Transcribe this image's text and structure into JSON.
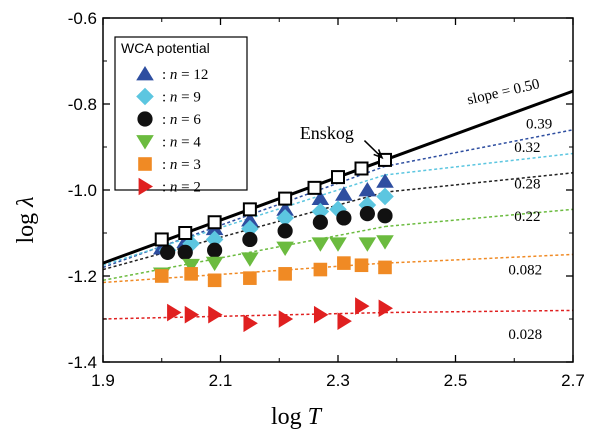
{
  "chart_data": {
    "type": "scatter",
    "xlabel_main": "log",
    "xlabel_var": "T",
    "ylabel_main": "log",
    "ylabel_var": "λ",
    "xlim": [
      1.9,
      2.7
    ],
    "ylim": [
      -1.4,
      -0.6
    ],
    "x_ticks": [
      "1.9",
      "2.1",
      "2.3",
      "2.5",
      "2.7"
    ],
    "y_ticks": [
      "-0.6",
      "-0.8",
      "-1.0",
      "-1.2",
      "-1.4"
    ],
    "x_tick_values": [
      1.9,
      2.1,
      2.3,
      2.5,
      2.7
    ],
    "y_tick_values": [
      -0.6,
      -0.8,
      -1.0,
      -1.2,
      -1.4
    ],
    "legend_title": "WCA potential",
    "series": [
      {
        "name": ": n = 12",
        "n_value": "12",
        "marker": "triangle-up",
        "color": "#2e4ea0",
        "x": [
          2.0,
          2.04,
          2.09,
          2.15,
          2.21,
          2.27,
          2.31,
          2.35,
          2.38
        ],
        "y": [
          -1.135,
          -1.12,
          -1.09,
          -1.07,
          -1.045,
          -1.02,
          -1.01,
          -1.0,
          -0.98
        ],
        "fit": {
          "x": [
            1.9,
            2.38
          ],
          "y": [
            -1.18,
            -0.945
          ],
          "color": "#2e4ea0"
        }
      },
      {
        "name": ": n = 9",
        "n_value": "9",
        "marker": "diamond",
        "color": "#5cc6e0",
        "x": [
          2.01,
          2.05,
          2.09,
          2.15,
          2.21,
          2.27,
          2.3,
          2.35,
          2.38
        ],
        "y": [
          -1.14,
          -1.125,
          -1.115,
          -1.09,
          -1.065,
          -1.05,
          -1.045,
          -1.035,
          -1.015
        ],
        "fit": {
          "x": [
            1.9,
            2.38
          ],
          "y": [
            -1.175,
            -0.965
          ],
          "color": "#5cc6e0"
        }
      },
      {
        "name": ": n = 6",
        "n_value": "6",
        "marker": "circle",
        "color": "#111111",
        "x": [
          2.01,
          2.04,
          2.09,
          2.15,
          2.21,
          2.27,
          2.31,
          2.35,
          2.38
        ],
        "y": [
          -1.145,
          -1.145,
          -1.14,
          -1.115,
          -1.095,
          -1.075,
          -1.065,
          -1.055,
          -1.06
        ],
        "fit": {
          "x": [
            1.9,
            2.38
          ],
          "y": [
            -1.185,
            -1.005
          ],
          "color": "#222222"
        }
      },
      {
        "name": ": n = 4",
        "n_value": "4",
        "marker": "triangle-down",
        "color": "#6bbb3f",
        "x": [
          2.0,
          2.05,
          2.09,
          2.15,
          2.21,
          2.27,
          2.3,
          2.35,
          2.38
        ],
        "y": [
          -1.195,
          -1.175,
          -1.17,
          -1.16,
          -1.135,
          -1.125,
          -1.125,
          -1.125,
          -1.12
        ],
        "fit": {
          "x": [
            1.9,
            2.38
          ],
          "y": [
            -1.21,
            -1.085
          ],
          "color": "#6bbb3f"
        }
      },
      {
        "name": ": n = 3",
        "n_value": "3",
        "marker": "square",
        "color": "#f08a24",
        "x": [
          2.0,
          2.05,
          2.09,
          2.15,
          2.21,
          2.27,
          2.31,
          2.34,
          2.38
        ],
        "y": [
          -1.2,
          -1.195,
          -1.21,
          -1.205,
          -1.195,
          -1.185,
          -1.17,
          -1.175,
          -1.18
        ],
        "fit": {
          "x": [
            1.9,
            2.38
          ],
          "y": [
            -1.215,
            -1.17
          ],
          "color": "#f08a24"
        }
      },
      {
        "name": ": n = 2",
        "n_value": "2",
        "marker": "triangle-right",
        "color": "#e02020",
        "x": [
          2.02,
          2.05,
          2.09,
          2.15,
          2.21,
          2.27,
          2.31,
          2.34,
          2.38
        ],
        "y": [
          -1.285,
          -1.29,
          -1.29,
          -1.31,
          -1.3,
          -1.29,
          -1.305,
          -1.27,
          -1.275
        ],
        "fit": {
          "x": [
            1.9,
            2.38
          ],
          "y": [
            -1.3,
            -1.285
          ],
          "color": "#e02020"
        }
      },
      {
        "name": "Enskog",
        "marker": "open-square",
        "color": "#000000",
        "x": [
          2.0,
          2.04,
          2.09,
          2.15,
          2.21,
          2.26,
          2.3,
          2.34,
          2.38
        ],
        "y": [
          -1.115,
          -1.1,
          -1.075,
          -1.045,
          -1.02,
          -0.995,
          -0.97,
          -0.95,
          -0.93
        ]
      }
    ],
    "solid_line": {
      "x": [
        1.9,
        2.7
      ],
      "y": [
        -1.17,
        -0.77
      ]
    },
    "extended_fits": [
      {
        "x": [
          2.38,
          2.7
        ],
        "y": [
          -0.945,
          -0.86
        ],
        "color": "#2e4ea0",
        "label": "0.39",
        "label_at": [
          2.62,
          -0.845
        ]
      },
      {
        "x": [
          2.38,
          2.7
        ],
        "y": [
          -0.965,
          -0.915
        ],
        "color": "#5cc6e0",
        "label": "0.32",
        "label_at": [
          2.6,
          -0.9
        ]
      },
      {
        "x": [
          2.38,
          2.7
        ],
        "y": [
          -1.005,
          -0.96
        ],
        "color": "#222222",
        "label": "0.28",
        "label_at": [
          2.6,
          -0.985
        ]
      },
      {
        "x": [
          2.38,
          2.7
        ],
        "y": [
          -1.085,
          -1.045
        ],
        "color": "#6bbb3f",
        "label": "0.22",
        "label_at": [
          2.6,
          -1.06
        ]
      },
      {
        "x": [
          2.38,
          2.7
        ],
        "y": [
          -1.17,
          -1.15
        ],
        "color": "#f08a24",
        "label": "0.082",
        "label_at": [
          2.59,
          -1.185
        ]
      },
      {
        "x": [
          2.38,
          2.7
        ],
        "y": [
          -1.285,
          -1.28
        ],
        "color": "#e02020",
        "label": "0.028",
        "label_at": [
          2.59,
          -1.335
        ]
      }
    ],
    "annotations": {
      "slope_label": "slope = 0.50",
      "slope_label_at": [
        2.52,
        -0.79
      ],
      "enskog_label": "Enskog",
      "enskog_label_at": [
        2.235,
        -0.87
      ],
      "arrow_from": [
        2.345,
        -0.885
      ],
      "arrow_to": [
        2.375,
        -0.925
      ]
    }
  }
}
